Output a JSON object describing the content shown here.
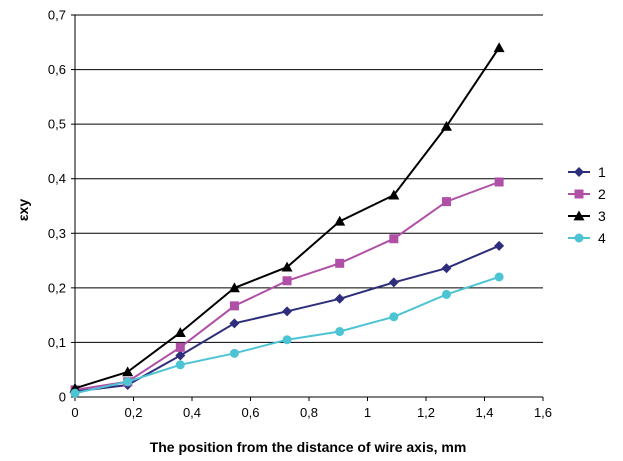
{
  "chart_data": {
    "type": "line",
    "title": "",
    "xlabel": "The position from the distance of wire axis, mm",
    "ylabel": "εxy",
    "xlim": [
      0,
      1.6
    ],
    "ylim": [
      0,
      0.7
    ],
    "x_ticks": [
      "0",
      "0,2",
      "0,4",
      "0,6",
      "0,8",
      "1",
      "1,2",
      "1,4",
      "1,6"
    ],
    "y_ticks": [
      "0",
      "0,1",
      "0,2",
      "0,3",
      "0,4",
      "0,5",
      "0,6",
      "0,7"
    ],
    "grid": "horizontal",
    "legend_position": "right",
    "x": [
      0,
      0.18,
      0.36,
      0.545,
      0.725,
      0.905,
      1.09,
      1.27,
      1.45
    ],
    "series": [
      {
        "name": "1",
        "color": "#2e2e7c",
        "marker": "diamond",
        "values": [
          0.01,
          0.022,
          0.076,
          0.135,
          0.157,
          0.18,
          0.21,
          0.236,
          0.277
        ]
      },
      {
        "name": "2",
        "color": "#b04fa6",
        "marker": "square",
        "values": [
          0.013,
          0.028,
          0.091,
          0.167,
          0.213,
          0.245,
          0.29,
          0.358,
          0.394
        ]
      },
      {
        "name": "3",
        "color": "#000000",
        "marker": "triangle",
        "values": [
          0.016,
          0.046,
          0.118,
          0.2,
          0.238,
          0.322,
          0.37,
          0.496,
          0.64
        ]
      },
      {
        "name": "4",
        "color": "#4cc4d4",
        "marker": "circle",
        "values": [
          0.007,
          0.028,
          0.059,
          0.08,
          0.105,
          0.12,
          0.147,
          0.188,
          0.22
        ]
      }
    ]
  }
}
